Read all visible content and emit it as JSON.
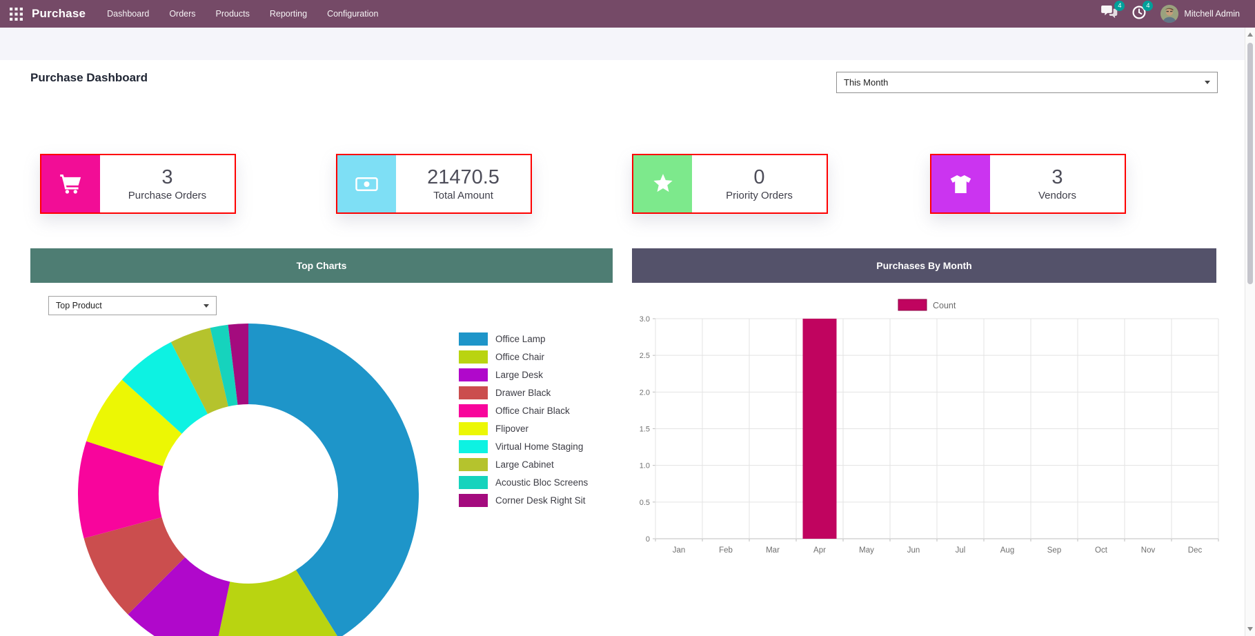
{
  "navbar": {
    "app_name": "Purchase",
    "menu_items": [
      "Dashboard",
      "Orders",
      "Products",
      "Reporting",
      "Configuration"
    ],
    "messages_badge": "4",
    "activities_badge": "4",
    "user_name": "Mitchell Admin",
    "colors": {
      "background": "#754a67",
      "badge": "#00a09a"
    }
  },
  "page": {
    "title": "Purchase Dashboard",
    "period_filter": "This Month"
  },
  "kpi_border_color": "#fe0000",
  "kpi_cards": [
    {
      "value": "3",
      "label": "Purchase Orders",
      "icon": "cart-icon",
      "color": "#f20d96"
    },
    {
      "value": "21470.5",
      "label": "Total Amount",
      "icon": "money-icon",
      "color": "#7edff5"
    },
    {
      "value": "0",
      "label": "Priority Orders",
      "icon": "star-icon",
      "color": "#7de98c"
    },
    {
      "value": "3",
      "label": "Vendors",
      "icon": "shirt-icon",
      "color": "#cb34f0"
    }
  ],
  "top_charts": {
    "header": "Top Charts",
    "header_color": "#4e7d73",
    "filter_value": "Top Product"
  },
  "purchases_by_month": {
    "header": "Purchases By Month",
    "header_color": "#54526a"
  },
  "chart_data": [
    {
      "type": "pie",
      "donut": true,
      "title": "Top Product",
      "labels": [
        "Office Lamp",
        "Office Chair",
        "Large Desk",
        "Drawer Black",
        "Office Chair Black",
        "Flipover",
        "Virtual Home Staging",
        "Large Cabinet",
        "Acoustic Bloc Screens",
        "Corner Desk Right Sit"
      ],
      "values": [
        41.1,
        12.2,
        9.2,
        8.3,
        9.2,
        6.7,
        5.8,
        3.9,
        1.7,
        1.9
      ],
      "unit": "percent share (estimated from arc angles)",
      "colors": [
        "#1e95c9",
        "#b9d411",
        "#b008cb",
        "#cb4e4e",
        "#f8059c",
        "#ecf704",
        "#0df2e2",
        "#b5c32d",
        "#16d3bd",
        "#a40b7e"
      ],
      "legend_position": "right"
    },
    {
      "type": "bar",
      "title": "Purchases By Month",
      "categories": [
        "Jan",
        "Feb",
        "Mar",
        "Apr",
        "May",
        "Jun",
        "Jul",
        "Aug",
        "Sep",
        "Oct",
        "Nov",
        "Dec"
      ],
      "series": [
        {
          "name": "Count",
          "values": [
            0,
            0,
            0,
            3,
            0,
            0,
            0,
            0,
            0,
            0,
            0,
            0
          ],
          "color": "#c0045f"
        }
      ],
      "xlabel": "",
      "ylabel": "",
      "ylim": [
        0,
        3
      ],
      "yticks": [
        0,
        0.5,
        1,
        1.5,
        2,
        2.5,
        3
      ],
      "grid": true,
      "legend_position": "top"
    }
  ]
}
